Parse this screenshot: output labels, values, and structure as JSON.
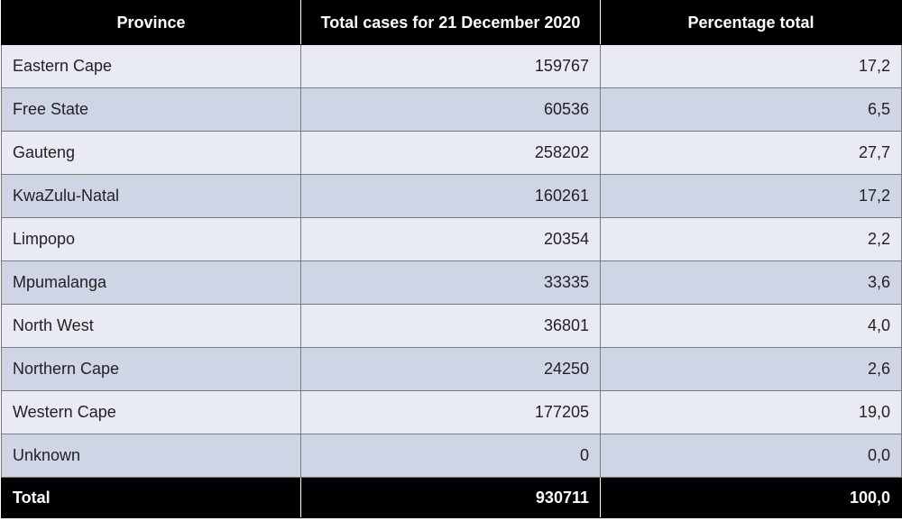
{
  "chart_data": {
    "type": "table",
    "columns": [
      "Province",
      "Total cases for 21 December 2020",
      "Percentage total"
    ],
    "rows": [
      [
        "Eastern Cape",
        "159767",
        "17,2"
      ],
      [
        "Free State",
        "60536",
        "6,5"
      ],
      [
        "Gauteng",
        "258202",
        "27,7"
      ],
      [
        "KwaZulu-Natal",
        "160261",
        "17,2"
      ],
      [
        "Limpopo",
        "20354",
        "2,2"
      ],
      [
        "Mpumalanga",
        "33335",
        "3,6"
      ],
      [
        "North West",
        "36801",
        "4,0"
      ],
      [
        "Northern Cape",
        "24250",
        "2,6"
      ],
      [
        "Western Cape",
        "177205",
        "19,0"
      ],
      [
        "Unknown",
        "0",
        "0,0"
      ]
    ],
    "total": [
      "Total",
      "930711",
      "100,0"
    ]
  },
  "colors": {
    "header_bg": "#000000",
    "row_light": "#e8ebf4",
    "row_dark": "#cfd5e5"
  }
}
